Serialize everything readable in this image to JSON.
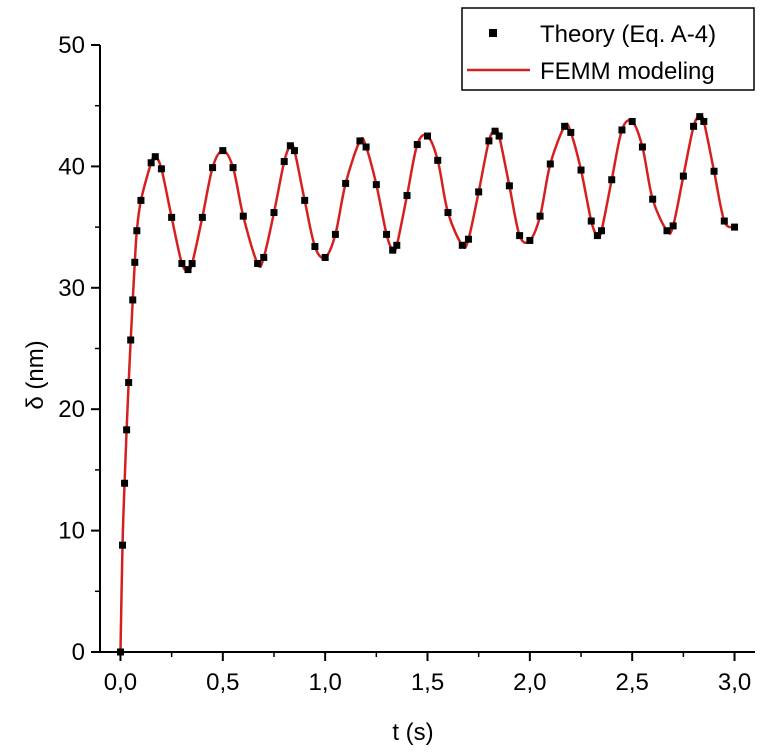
{
  "chart_data": {
    "type": "scatter",
    "title": "",
    "xlabel": "t (s)",
    "ylabel": "δ (nm)",
    "xlim": [
      -0.1,
      3.1
    ],
    "ylim": [
      0,
      50
    ],
    "x_ticks": [
      0,
      0.5,
      1,
      1.5,
      2,
      2.5,
      3
    ],
    "x_tick_labels": [
      "0,0",
      "0,5",
      "1,0",
      "1,5",
      "2,0",
      "2,5",
      "3,0"
    ],
    "y_ticks": [
      0,
      10,
      20,
      30,
      40,
      50
    ],
    "y_tick_labels": [
      "0",
      "10",
      "20",
      "30",
      "40",
      "50"
    ],
    "grid": false,
    "legend_position": "top-right",
    "series": [
      {
        "name": "Theory (Eq. A-4)",
        "mark": "square",
        "color": "#000000",
        "x": [
          0.0,
          0.01,
          0.02,
          0.03,
          0.04,
          0.05,
          0.06,
          0.07,
          0.08,
          0.1,
          0.15,
          0.17,
          0.2,
          0.25,
          0.3,
          0.33,
          0.35,
          0.4,
          0.45,
          0.5,
          0.55,
          0.6,
          0.67,
          0.7,
          0.75,
          0.8,
          0.83,
          0.85,
          0.9,
          0.95,
          1.0,
          1.05,
          1.1,
          1.17,
          1.2,
          1.25,
          1.3,
          1.33,
          1.35,
          1.4,
          1.45,
          1.5,
          1.55,
          1.6,
          1.67,
          1.7,
          1.75,
          1.8,
          1.83,
          1.85,
          1.9,
          1.95,
          2.0,
          2.05,
          2.1,
          2.17,
          2.2,
          2.25,
          2.3,
          2.33,
          2.35,
          2.4,
          2.45,
          2.5,
          2.55,
          2.6,
          2.67,
          2.7,
          2.75,
          2.8,
          2.83,
          2.85,
          2.9,
          2.95,
          3.0
        ],
        "y": [
          0.0,
          8.8,
          13.9,
          18.3,
          22.2,
          25.7,
          29.0,
          32.1,
          34.7,
          37.2,
          40.3,
          40.8,
          39.8,
          35.8,
          32.0,
          31.5,
          32.0,
          35.8,
          39.9,
          41.3,
          39.9,
          35.9,
          32.0,
          32.5,
          36.2,
          40.4,
          41.7,
          41.3,
          37.2,
          33.4,
          32.5,
          34.4,
          38.6,
          42.1,
          41.6,
          38.5,
          34.4,
          33.1,
          33.5,
          37.6,
          41.8,
          42.5,
          40.5,
          36.2,
          33.5,
          34.0,
          37.9,
          42.1,
          42.9,
          42.5,
          38.4,
          34.3,
          33.9,
          35.9,
          40.2,
          43.3,
          42.8,
          39.7,
          35.5,
          34.3,
          34.7,
          38.9,
          43.0,
          43.7,
          41.6,
          37.3,
          34.7,
          35.1,
          39.2,
          43.3,
          44.1,
          43.7,
          39.6,
          35.5,
          35.0
        ]
      },
      {
        "name": "FEMM modeling",
        "mark": "line",
        "color": "#d62020",
        "x": [
          0.0,
          0.01,
          0.02,
          0.03,
          0.04,
          0.05,
          0.06,
          0.07,
          0.08,
          0.1,
          0.15,
          0.17,
          0.2,
          0.25,
          0.3,
          0.33,
          0.35,
          0.4,
          0.45,
          0.5,
          0.55,
          0.6,
          0.67,
          0.7,
          0.75,
          0.8,
          0.83,
          0.85,
          0.9,
          0.95,
          1.0,
          1.05,
          1.1,
          1.17,
          1.2,
          1.25,
          1.3,
          1.33,
          1.35,
          1.4,
          1.45,
          1.5,
          1.55,
          1.6,
          1.67,
          1.7,
          1.75,
          1.8,
          1.83,
          1.85,
          1.9,
          1.95,
          2.0,
          2.05,
          2.1,
          2.17,
          2.2,
          2.25,
          2.3,
          2.33,
          2.35,
          2.4,
          2.45,
          2.5,
          2.55,
          2.6,
          2.67,
          2.7,
          2.75,
          2.8,
          2.83,
          2.85,
          2.9,
          2.95,
          3.0
        ],
        "y": [
          0.0,
          8.8,
          13.9,
          18.3,
          22.2,
          25.7,
          29.0,
          32.1,
          34.7,
          37.2,
          40.3,
          40.8,
          39.8,
          35.8,
          32.0,
          31.5,
          32.0,
          35.8,
          39.9,
          41.3,
          39.9,
          35.9,
          32.0,
          32.5,
          36.2,
          40.4,
          41.7,
          41.3,
          37.2,
          33.4,
          32.5,
          34.4,
          38.6,
          42.1,
          41.6,
          38.5,
          34.4,
          33.1,
          33.5,
          37.6,
          41.8,
          42.5,
          40.5,
          36.2,
          33.5,
          34.0,
          37.9,
          42.1,
          42.9,
          42.5,
          38.4,
          34.3,
          33.9,
          35.9,
          40.2,
          43.3,
          42.8,
          39.7,
          35.5,
          34.3,
          34.7,
          38.9,
          43.0,
          43.7,
          41.6,
          37.3,
          34.7,
          35.1,
          39.2,
          43.3,
          44.1,
          43.7,
          39.6,
          35.5,
          35.0
        ]
      }
    ]
  }
}
